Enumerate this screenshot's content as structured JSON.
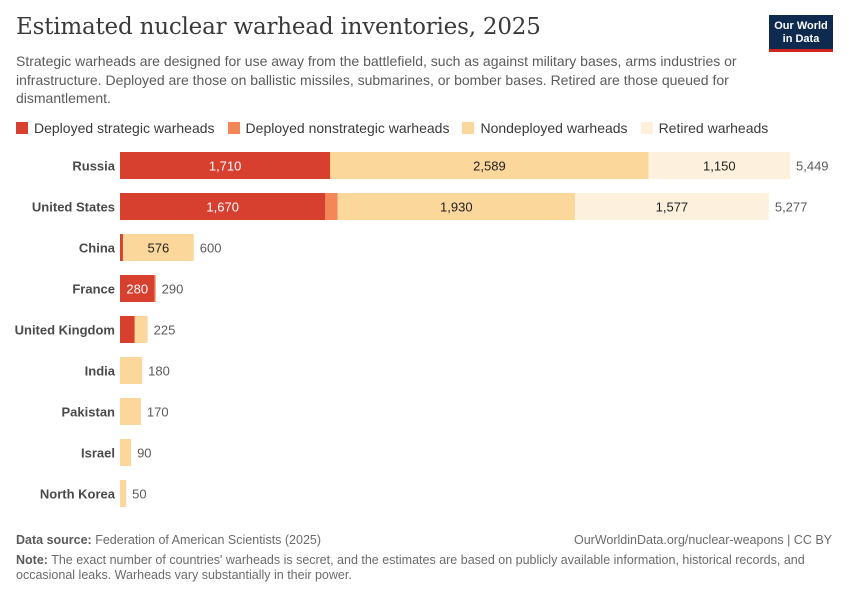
{
  "header": {
    "title": "Estimated nuclear warhead inventories, 2025",
    "subtitle": "Strategic warheads are designed for use away from the battlefield, such as against military bases, arms industries or infrastructure. Deployed are those on ballistic missiles, submarines, or bomber bases. Retired are those queued for dismantlement.",
    "logo_line1": "Our World",
    "logo_line2": "in Data"
  },
  "legend": [
    {
      "label": "Deployed strategic warheads",
      "color": "#d73f2f"
    },
    {
      "label": "Deployed nonstrategic warheads",
      "color": "#f4875a"
    },
    {
      "label": "Nondeployed warheads",
      "color": "#fcd79b"
    },
    {
      "label": "Retired warheads",
      "color": "#fdf1de"
    }
  ],
  "chart_data": {
    "type": "bar",
    "orientation": "horizontal",
    "stacked": true,
    "categories": [
      "Russia",
      "United States",
      "China",
      "France",
      "United Kingdom",
      "India",
      "Pakistan",
      "Israel",
      "North Korea"
    ],
    "series": [
      {
        "name": "Deployed strategic warheads",
        "color": "#d73f2f",
        "values": [
          1710,
          1670,
          24,
          280,
          120,
          0,
          0,
          0,
          0
        ],
        "labels": [
          "1,710",
          "1,670",
          "",
          "280",
          "",
          "",
          "",
          "",
          ""
        ]
      },
      {
        "name": "Deployed nonstrategic warheads",
        "color": "#f4875a",
        "values": [
          0,
          100,
          0,
          10,
          0,
          0,
          0,
          0,
          0
        ],
        "labels": [
          "",
          "",
          "",
          "",
          "",
          "",
          "",
          "",
          ""
        ]
      },
      {
        "name": "Nondeployed warheads",
        "color": "#fcd79b",
        "values": [
          2589,
          1930,
          576,
          0,
          105,
          180,
          170,
          90,
          50
        ],
        "labels": [
          "2,589",
          "1,930",
          "576",
          "",
          "",
          "",
          "",
          "",
          ""
        ]
      },
      {
        "name": "Retired warheads",
        "color": "#fdf1de",
        "values": [
          1150,
          1577,
          0,
          0,
          0,
          0,
          0,
          0,
          0
        ],
        "labels": [
          "1,150",
          "1,577",
          "",
          "",
          "",
          "",
          "",
          "",
          ""
        ]
      }
    ],
    "totals": [
      "5,449",
      "5,277",
      "600",
      "290",
      "225",
      "180",
      "170",
      "90",
      "50"
    ],
    "xlim": [
      0,
      5449
    ]
  },
  "footer": {
    "source_label": "Data source:",
    "source_text": "Federation of American Scientists (2025)",
    "credit": "OurWorldinData.org/nuclear-weapons | CC BY",
    "note_label": "Note:",
    "note_text": "The exact number of countries' warheads is secret, and the estimates are based on publicly available information, historical records, and occasional leaks. Warheads vary substantially in their power."
  }
}
